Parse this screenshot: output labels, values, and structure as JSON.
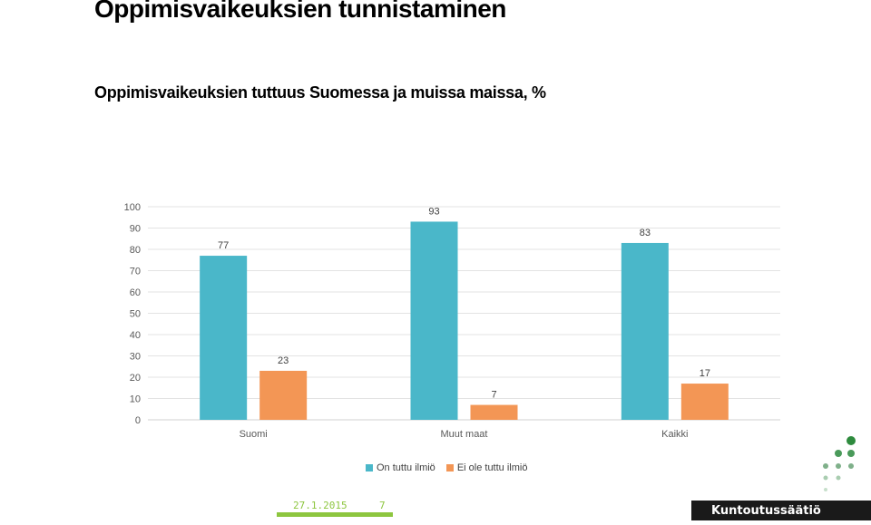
{
  "slide": {
    "title": "Oppimisvaikeuksien tunnistaminen",
    "subtitle": "Oppimisvaikeuksien tuttuus Suomessa ja muissa maissa, %"
  },
  "chart_data": {
    "type": "bar",
    "categories": [
      "Suomi",
      "Muut maat",
      "Kaikki"
    ],
    "series": [
      {
        "name": "On tuttu ilmiö",
        "values": [
          77,
          93,
          83
        ],
        "color": "#4ab7c9"
      },
      {
        "name": "Ei ole tuttu ilmiö",
        "values": [
          23,
          7,
          17
        ],
        "color": "#f39655"
      }
    ],
    "ylim": [
      0,
      100
    ],
    "yticks": [
      0,
      10,
      20,
      30,
      40,
      50,
      60,
      70,
      80,
      90,
      100
    ],
    "grid": true,
    "legend_position": "bottom",
    "data_labels": true
  },
  "footer": {
    "date": "27.1.2015",
    "page": "7",
    "brand": "Kuntoutussäätiö",
    "accent_color": "#8dc63f",
    "logo_color": "#4a9a5a"
  }
}
